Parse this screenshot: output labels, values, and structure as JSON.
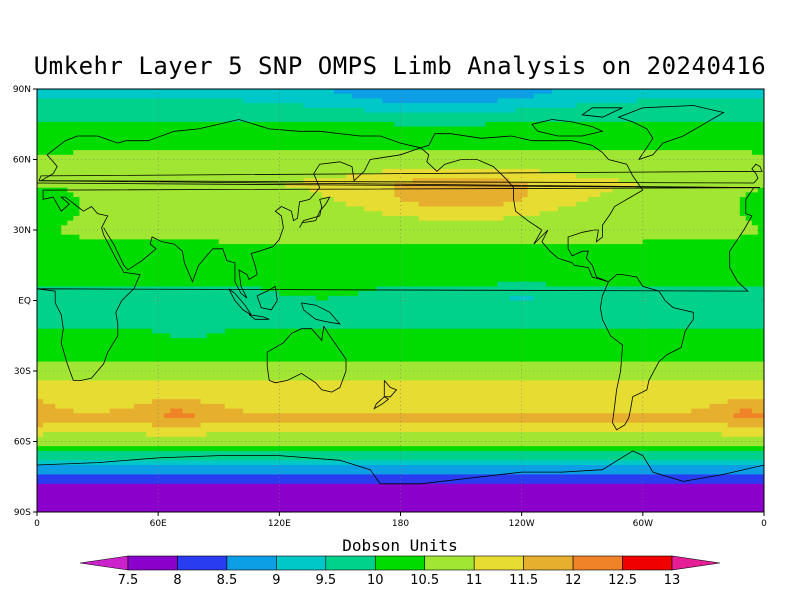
{
  "title": "Umkehr Layer 5 SNP OMPS Limb Analysis on 20240416",
  "colorbar": {
    "title": "Dobson Units",
    "labels": [
      "7.5",
      "8",
      "8.5",
      "9",
      "9.5",
      "10",
      "10.5",
      "11",
      "11.5",
      "12",
      "12.5",
      "13"
    ],
    "colors": [
      "#cc22cc",
      "#8c00cc",
      "#2a3cf0",
      "#0c9fe6",
      "#00c8c8",
      "#00d28c",
      "#00dc00",
      "#a0e632",
      "#e6dc32",
      "#e6af2d",
      "#f08228",
      "#f00000",
      "#e61e96"
    ]
  },
  "map": {
    "y_ticks": [
      "90N",
      "60N",
      "30N",
      "EQ",
      "30S",
      "60S",
      "90S"
    ],
    "x_ticks": [
      "0",
      "60E",
      "120E",
      "180",
      "120W",
      "60W",
      "0"
    ]
  },
  "chart_data": {
    "type": "heatmap",
    "title": "Umkehr Layer 5 SNP OMPS Limb Analysis on 20240416",
    "units": "Dobson Units",
    "projection": "equirectangular, longitude 0 to 360, latitude 90S to 90N",
    "contour_levels": [
      7.5,
      8,
      8.5,
      9,
      9.5,
      10,
      10.5,
      11,
      11.5,
      12,
      12.5,
      13
    ],
    "zonal_profile_approx": [
      {
        "lat": 90,
        "value": 9.3
      },
      {
        "lat": 70,
        "value": 10.3
      },
      {
        "lat": 50,
        "value": 11.0
      },
      {
        "lat": 30,
        "value": 10.6
      },
      {
        "lat": 10,
        "value": 10.2
      },
      {
        "lat": 0,
        "value": 9.7
      },
      {
        "lat": -20,
        "value": 10.2
      },
      {
        "lat": -35,
        "value": 11.0
      },
      {
        "lat": -50,
        "value": 11.6
      },
      {
        "lat": -60,
        "value": 10.7
      },
      {
        "lat": -70,
        "value": 9.0
      },
      {
        "lat": -80,
        "value": 7.7
      },
      {
        "lat": -90,
        "value": 7.6
      }
    ],
    "maxima": [
      {
        "lon": 210,
        "lat": 45,
        "value": 12.0
      },
      {
        "lon": 70,
        "lat": -48,
        "value": 12.0
      },
      {
        "lon": 350,
        "lat": -48,
        "value": 12.0
      }
    ]
  }
}
